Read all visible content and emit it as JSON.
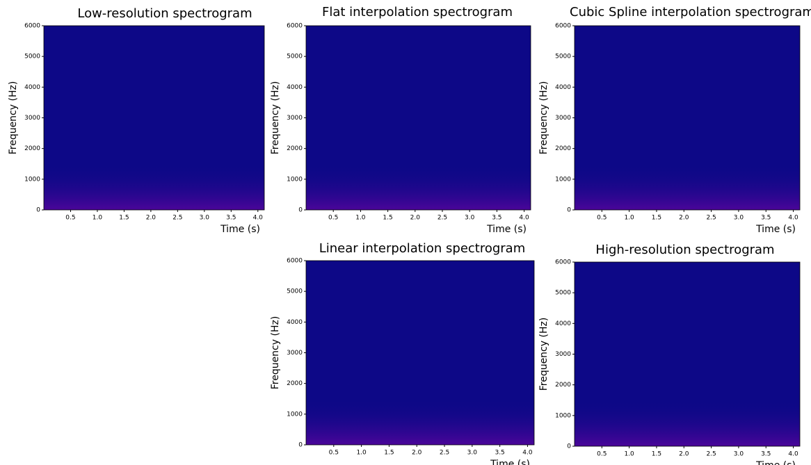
{
  "chart_data": [
    {
      "type": "spectrogram",
      "title": "Low-resolution spectrogram",
      "x_label": "Time (s)",
      "y_label": "Frequency (Hz)",
      "background": "#0d0887",
      "xlim": [
        0,
        4.12
      ],
      "ylim": [
        0,
        6000
      ],
      "xticks": [
        0.5,
        {
          "value": 1,
          "label": "1.0"
        },
        1.5,
        {
          "value": 2,
          "label": "2.0"
        },
        2.5,
        {
          "value": 3,
          "label": "3.0"
        },
        3.5,
        {
          "value": 4,
          "label": "4.0"
        }
      ],
      "yticks": [
        0,
        1000,
        2000,
        3000,
        4000,
        5000,
        6000
      ]
    },
    {
      "type": "spectrogram",
      "title": "Flat interpolation spectrogram",
      "x_label": "Time (s)",
      "y_label": "Frequency (Hz)",
      "background": "#0d0887",
      "xlim": [
        0,
        4.12
      ],
      "ylim": [
        0,
        6000
      ],
      "xticks": [
        0.5,
        {
          "value": 1,
          "label": "1.0"
        },
        1.5,
        {
          "value": 2,
          "label": "2.0"
        },
        2.5,
        {
          "value": 3,
          "label": "3.0"
        },
        3.5,
        {
          "value": 4,
          "label": "4.0"
        }
      ],
      "yticks": [
        0,
        1000,
        2000,
        3000,
        4000,
        5000,
        6000
      ]
    },
    {
      "type": "spectrogram",
      "title": "Cubic Spline interpolation spectrogram",
      "x_label": "Time (s)",
      "y_label": "Frequency (Hz)",
      "background": "#0d0887",
      "xlim": [
        0,
        4.12
      ],
      "ylim": [
        0,
        6000
      ],
      "xticks": [
        0.5,
        {
          "value": 1,
          "label": "1.0"
        },
        1.5,
        {
          "value": 2,
          "label": "2.0"
        },
        2.5,
        {
          "value": 3,
          "label": "3.0"
        },
        3.5,
        {
          "value": 4,
          "label": "4.0"
        }
      ],
      "yticks": [
        0,
        1000,
        2000,
        3000,
        4000,
        5000,
        6000
      ]
    },
    {
      "type": "spectrogram",
      "title": "Linear interpolation spectrogram",
      "x_label": "Time (s)",
      "y_label": "Frequency (Hz)",
      "background": "#0d0887",
      "xlim": [
        0,
        4.12
      ],
      "ylim": [
        0,
        6000
      ],
      "xticks": [
        0.5,
        {
          "value": 1,
          "label": "1.0"
        },
        1.5,
        {
          "value": 2,
          "label": "2.0"
        },
        2.5,
        {
          "value": 3,
          "label": "3.0"
        },
        3.5,
        {
          "value": 4,
          "label": "4.0"
        }
      ],
      "yticks": [
        0,
        1000,
        2000,
        3000,
        4000,
        5000,
        6000
      ]
    },
    {
      "type": "spectrogram",
      "title": "High-resolution spectrogram",
      "x_label": "Time (s)",
      "y_label": "Frequency (Hz)",
      "background": "#0d0887",
      "xlim": [
        0,
        4.12
      ],
      "ylim": [
        0,
        6000
      ],
      "xticks": [
        0.5,
        {
          "value": 1,
          "label": "1.0"
        },
        1.5,
        {
          "value": 2,
          "label": "2.0"
        },
        2.5,
        {
          "value": 3,
          "label": "3.0"
        },
        3.5,
        {
          "value": 4,
          "label": "4.0"
        }
      ],
      "yticks": [
        0,
        1000,
        2000,
        3000,
        4000,
        5000,
        6000
      ]
    }
  ]
}
